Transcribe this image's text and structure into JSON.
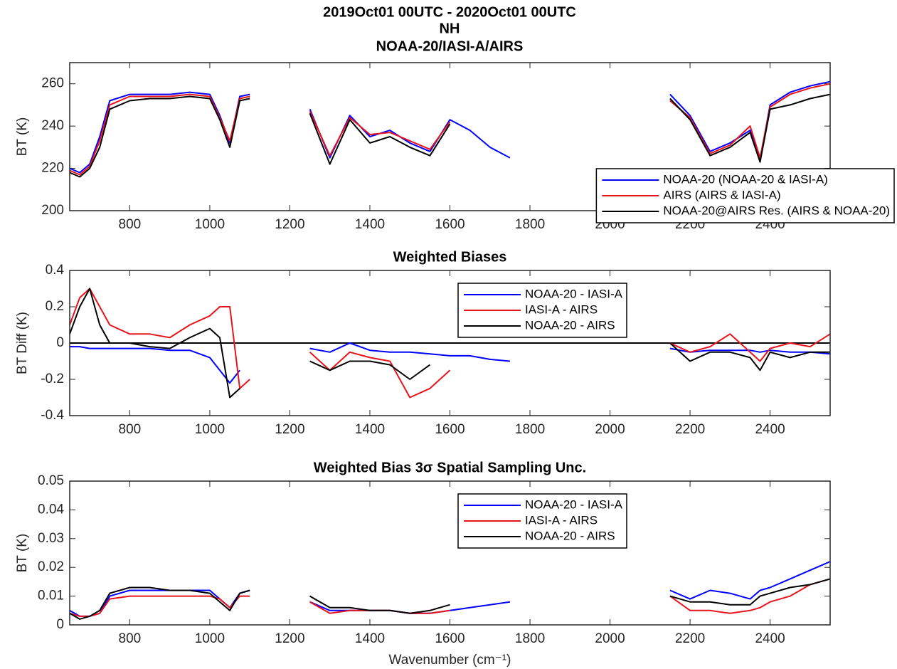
{
  "suptitle": [
    "2019Oct01 00UTC  -  2020Oct01 00UTC",
    "NH",
    "NOAA-20/IASI-A/AIRS"
  ],
  "chart_data": [
    {
      "type": "line",
      "ylabel": "BT (K)",
      "legend": "lower right",
      "x": [
        650,
        675,
        700,
        725,
        750,
        800,
        850,
        900,
        950,
        1000,
        1025,
        1050,
        1075,
        1100,
        1150,
        1200,
        1250,
        1300,
        1350,
        1400,
        1450,
        1500,
        1550,
        1600,
        1650,
        1700,
        1750,
        1800,
        2150,
        2200,
        2250,
        2300,
        2350,
        2375,
        2400,
        2450,
        2500,
        2550
      ],
      "xlim": [
        650,
        2550
      ],
      "xticks": [
        800,
        1000,
        1200,
        1400,
        1600,
        1800,
        2000,
        2200,
        2400
      ],
      "ylim": [
        200,
        270
      ],
      "yticks": [
        200,
        220,
        240,
        260
      ],
      "series": [
        {
          "name": "NOAA-20 (NOAA-20 & IASI-A)",
          "color": "#0000ff",
          "values": [
            220,
            218,
            222,
            235,
            252,
            255,
            255,
            255,
            256,
            255,
            245,
            232,
            254,
            255,
            null,
            null,
            248,
            225,
            245,
            235,
            238,
            232,
            228,
            243,
            238,
            230,
            225,
            null,
            255,
            245,
            228,
            232,
            238,
            224,
            250,
            256,
            259,
            261
          ]
        },
        {
          "name": "AIRS (AIRS & IASI-A)",
          "color": "#e8141c",
          "values": [
            219,
            217,
            221,
            233,
            250,
            254,
            254,
            254,
            255,
            254,
            244,
            233,
            253,
            254,
            null,
            null,
            247,
            226,
            244,
            236,
            237,
            233,
            229,
            242,
            null,
            null,
            null,
            null,
            252,
            244,
            227,
            231,
            240,
            225,
            249,
            255,
            258,
            260
          ]
        },
        {
          "name": "NOAA-20@AIRS Res. (AIRS & NOAA-20)",
          "color": "#000000",
          "values": [
            218,
            216,
            220,
            230,
            248,
            252,
            253,
            253,
            254,
            253,
            243,
            230,
            252,
            253,
            null,
            null,
            246,
            222,
            243,
            232,
            235,
            230,
            226,
            241,
            null,
            null,
            null,
            null,
            253,
            243,
            226,
            230,
            237,
            223,
            248,
            250,
            253,
            255
          ]
        }
      ]
    },
    {
      "type": "line",
      "title": "Weighted Biases",
      "ylabel": "BT Diff (K)",
      "legend": "upper center",
      "hline": 0,
      "x": [
        650,
        675,
        700,
        725,
        750,
        800,
        850,
        900,
        950,
        1000,
        1025,
        1050,
        1075,
        1100,
        1150,
        1200,
        1250,
        1300,
        1350,
        1400,
        1450,
        1500,
        1550,
        1600,
        1650,
        1700,
        1750,
        1800,
        2150,
        2200,
        2250,
        2300,
        2350,
        2375,
        2400,
        2450,
        2500,
        2550
      ],
      "xlim": [
        650,
        2550
      ],
      "xticks": [
        800,
        1000,
        1200,
        1400,
        1600,
        1800,
        2000,
        2200,
        2400
      ],
      "ylim": [
        -0.4,
        0.4
      ],
      "yticks": [
        -0.4,
        -0.2,
        0,
        0.2,
        0.4
      ],
      "series": [
        {
          "name": "NOAA-20 - IASI-A",
          "color": "#0000ff",
          "values": [
            -0.02,
            -0.02,
            -0.03,
            -0.03,
            -0.03,
            -0.03,
            -0.03,
            -0.04,
            -0.04,
            -0.08,
            -0.15,
            -0.22,
            -0.15,
            null,
            null,
            null,
            -0.03,
            -0.05,
            0,
            -0.04,
            -0.05,
            -0.05,
            -0.06,
            -0.07,
            -0.07,
            -0.09,
            -0.1,
            null,
            -0.03,
            -0.05,
            -0.04,
            -0.04,
            -0.04,
            -0.05,
            -0.04,
            -0.05,
            -0.05,
            -0.06
          ]
        },
        {
          "name": "IASI-A - AIRS",
          "color": "#e8141c",
          "values": [
            0.1,
            0.25,
            0.3,
            0.2,
            0.1,
            0.05,
            0.05,
            0.03,
            0.1,
            0.15,
            0.2,
            0.2,
            -0.25,
            -0.2,
            null,
            null,
            -0.05,
            -0.15,
            -0.05,
            -0.08,
            -0.1,
            -0.3,
            -0.25,
            -0.15,
            null,
            null,
            null,
            null,
            0,
            -0.05,
            -0.02,
            0.05,
            -0.05,
            -0.1,
            -0.03,
            0,
            -0.02,
            0.05
          ]
        },
        {
          "name": "NOAA-20 - AIRS",
          "color": "#000000",
          "values": [
            0.05,
            0.2,
            0.3,
            0.1,
            0,
            0,
            -0.02,
            -0.03,
            0.03,
            0.08,
            0.03,
            -0.3,
            -0.25,
            null,
            null,
            null,
            -0.1,
            -0.15,
            -0.1,
            -0.1,
            -0.12,
            -0.2,
            -0.12,
            null,
            null,
            null,
            null,
            null,
            0,
            -0.1,
            -0.05,
            -0.05,
            -0.08,
            -0.15,
            -0.05,
            -0.08,
            -0.05,
            -0.05
          ]
        }
      ]
    },
    {
      "type": "line",
      "title": "Weighted Bias 3σ Spatial Sampling Unc.",
      "ylabel": "BT (K)",
      "xlabel": "Wavenumber (cm⁻¹)",
      "legend": "upper center",
      "x": [
        650,
        675,
        700,
        725,
        750,
        800,
        850,
        900,
        950,
        1000,
        1025,
        1050,
        1075,
        1100,
        1150,
        1200,
        1250,
        1300,
        1350,
        1400,
        1450,
        1500,
        1550,
        1600,
        1650,
        1700,
        1750,
        1800,
        2150,
        2200,
        2250,
        2300,
        2350,
        2375,
        2400,
        2450,
        2500,
        2550
      ],
      "xlim": [
        650,
        2550
      ],
      "xticks": [
        800,
        1000,
        1200,
        1400,
        1600,
        1800,
        2000,
        2200,
        2400
      ],
      "ylim": [
        0,
        0.05
      ],
      "yticks": [
        0,
        0.01,
        0.02,
        0.03,
        0.04,
        0.05
      ],
      "series": [
        {
          "name": "NOAA-20 - IASI-A",
          "color": "#0000ff",
          "values": [
            0.005,
            0.003,
            0.003,
            0.004,
            0.01,
            0.012,
            0.012,
            0.012,
            0.012,
            0.012,
            0.009,
            0.006,
            0.011,
            0.012,
            null,
            null,
            0.008,
            0.005,
            0.005,
            0.005,
            0.005,
            0.004,
            0.004,
            0.005,
            0.006,
            0.007,
            0.008,
            null,
            0.012,
            0.009,
            0.012,
            0.011,
            0.009,
            0.012,
            0.013,
            0.016,
            0.019,
            0.022
          ]
        },
        {
          "name": "IASI-A - AIRS",
          "color": "#e8141c",
          "values": [
            0.004,
            0.003,
            0.003,
            0.004,
            0.009,
            0.01,
            0.01,
            0.01,
            0.01,
            0.01,
            0.009,
            0.006,
            0.01,
            0.01,
            null,
            null,
            0.008,
            0.004,
            0.005,
            0.005,
            0.005,
            0.004,
            0.004,
            0.005,
            null,
            null,
            null,
            null,
            0.01,
            0.005,
            0.005,
            0.004,
            0.005,
            0.006,
            0.008,
            0.01,
            0.014,
            0.016
          ]
        },
        {
          "name": "NOAA-20 - AIRS",
          "color": "#000000",
          "values": [
            0.004,
            0.002,
            0.003,
            0.005,
            0.011,
            0.013,
            0.013,
            0.012,
            0.012,
            0.011,
            0.008,
            0.005,
            0.011,
            0.012,
            null,
            null,
            0.01,
            0.006,
            0.006,
            0.005,
            0.005,
            0.004,
            0.005,
            0.007,
            null,
            null,
            null,
            null,
            0.01,
            0.008,
            0.008,
            0.007,
            0.007,
            0.01,
            0.011,
            0.013,
            0.014,
            0.016
          ]
        }
      ]
    }
  ]
}
